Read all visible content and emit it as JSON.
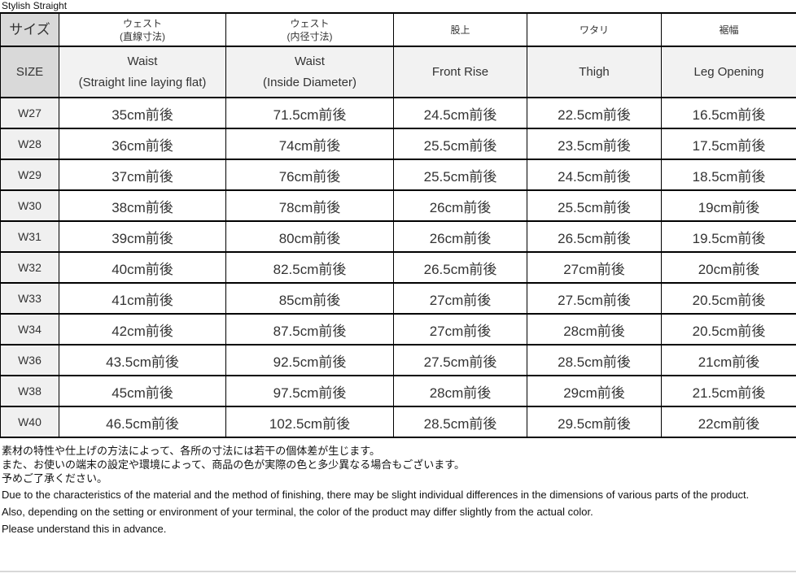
{
  "title": "Stylish Straight",
  "table": {
    "columns": [
      {
        "jp": "サイズ",
        "en": "SIZE"
      },
      {
        "jp1": "ウェスト",
        "jp2": "(直線寸法)",
        "en1": "Waist",
        "en2": "(Straight line laying flat)"
      },
      {
        "jp1": "ウェスト",
        "jp2": "(内径寸法)",
        "en1": "Waist",
        "en2": "(Inside Diameter)"
      },
      {
        "jp": "股上",
        "en": "Front Rise"
      },
      {
        "jp": "ワタリ",
        "en": "Thigh"
      },
      {
        "jp": "裾幅",
        "en": "Leg Opening"
      }
    ],
    "rows": [
      {
        "size": "W27",
        "values": [
          "35cm前後",
          "71.5cm前後",
          "24.5cm前後",
          "22.5cm前後",
          "16.5cm前後"
        ]
      },
      {
        "size": "W28",
        "values": [
          "36cm前後",
          "74cm前後",
          "25.5cm前後",
          "23.5cm前後",
          "17.5cm前後"
        ]
      },
      {
        "size": "W29",
        "values": [
          "37cm前後",
          "76cm前後",
          "25.5cm前後",
          "24.5cm前後",
          "18.5cm前後"
        ]
      },
      {
        "size": "W30",
        "values": [
          "38cm前後",
          "78cm前後",
          "26cm前後",
          "25.5cm前後",
          "19cm前後"
        ]
      },
      {
        "size": "W31",
        "values": [
          "39cm前後",
          "80cm前後",
          "26cm前後",
          "26.5cm前後",
          "19.5cm前後"
        ]
      },
      {
        "size": "W32",
        "values": [
          "40cm前後",
          "82.5cm前後",
          "26.5cm前後",
          "27cm前後",
          "20cm前後"
        ]
      },
      {
        "size": "W33",
        "values": [
          "41cm前後",
          "85cm前後",
          "27cm前後",
          "27.5cm前後",
          "20.5cm前後"
        ]
      },
      {
        "size": "W34",
        "values": [
          "42cm前後",
          "87.5cm前後",
          "27cm前後",
          "28cm前後",
          "20.5cm前後"
        ]
      },
      {
        "size": "W36",
        "values": [
          "43.5cm前後",
          "92.5cm前後",
          "27.5cm前後",
          "28.5cm前後",
          "21cm前後"
        ]
      },
      {
        "size": "W38",
        "values": [
          "45cm前後",
          "97.5cm前後",
          "28cm前後",
          "29cm前後",
          "21.5cm前後"
        ]
      },
      {
        "size": "W40",
        "values": [
          "46.5cm前後",
          "102.5cm前後",
          "28.5cm前後",
          "29.5cm前後",
          "22cm前後"
        ]
      }
    ]
  },
  "notes": {
    "jp": [
      "素材の特性や仕上げの方法によって、各所の寸法には若干の個体差が生じます。",
      "また、お使いの端末の設定や環境によって、商品の色が実際の色と多少異なる場合もございます。",
      "予めご了承ください。"
    ],
    "en": [
      "Due to the characteristics of the material and the method of finishing, there may be slight individual differences in the dimensions of various parts of the product.",
      "Also, depending on the setting or environment of your terminal, the color of the product may differ slightly from the actual color.",
      "Please understand this in advance."
    ]
  },
  "colors": {
    "header_corner_bg": "#d9d9d9",
    "header_en_bg": "#f2f2f2",
    "size_col_bg": "#f0f0f0",
    "border": "#000000"
  }
}
